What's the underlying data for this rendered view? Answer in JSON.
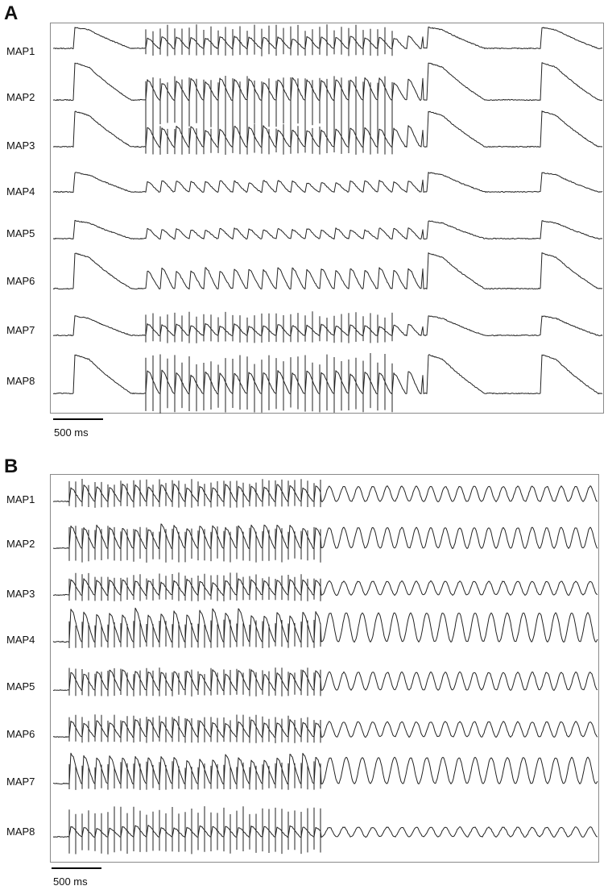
{
  "chart_data": [
    {
      "type": "line",
      "panel": "A",
      "series": [
        {
          "name": "MAP1",
          "values": []
        },
        {
          "name": "MAP2",
          "values": []
        },
        {
          "name": "MAP3",
          "values": []
        },
        {
          "name": "MAP4",
          "values": []
        },
        {
          "name": "MAP5",
          "values": []
        },
        {
          "name": "MAP6",
          "values": []
        },
        {
          "name": "MAP7",
          "values": []
        },
        {
          "name": "MAP8",
          "values": []
        }
      ],
      "scale_bar": "500 ms",
      "traces": "sinus beat, rapid pacing train (~35 pulses), then return to single beats"
    },
    {
      "type": "line",
      "panel": "B",
      "series": [
        {
          "name": "MAP1",
          "values": []
        },
        {
          "name": "MAP2",
          "values": []
        },
        {
          "name": "MAP3",
          "values": []
        },
        {
          "name": "MAP4",
          "values": []
        },
        {
          "name": "MAP5",
          "values": []
        },
        {
          "name": "MAP6",
          "values": []
        },
        {
          "name": "MAP7",
          "values": []
        },
        {
          "name": "MAP8",
          "values": []
        }
      ],
      "scale_bar": "500 ms",
      "traces": "rapid pacing train followed by sustained rapid activation"
    }
  ],
  "panels": {
    "a": {
      "letter": "A",
      "labels": [
        "MAP1",
        "MAP2",
        "MAP3",
        "MAP4",
        "MAP5",
        "MAP6",
        "MAP7",
        "MAP8"
      ],
      "scale_label": "500 ms"
    },
    "b": {
      "letter": "B",
      "labels": [
        "MAP1",
        "MAP2",
        "MAP3",
        "MAP4",
        "MAP5",
        "MAP6",
        "MAP7",
        "MAP8"
      ],
      "scale_label": "500 ms"
    }
  }
}
